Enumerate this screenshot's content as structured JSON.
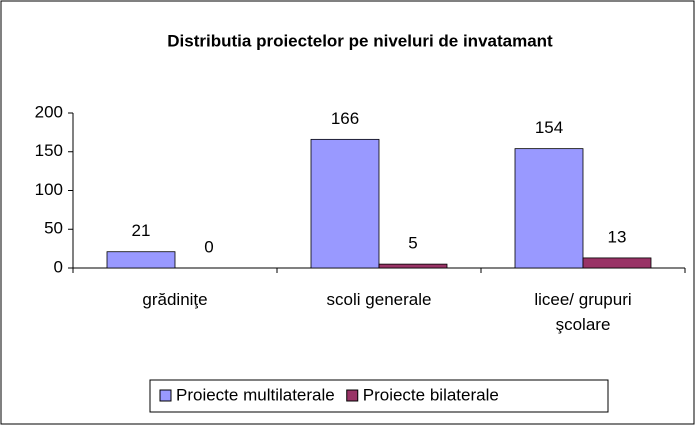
{
  "chart_data": {
    "type": "bar",
    "title": "Distributia proiectelor pe niveluri de invatamant",
    "categories": [
      "grădiniţe",
      "scoli generale",
      "licee/ grupuri şcolare"
    ],
    "series": [
      {
        "name": "Proiecte multilaterale",
        "color": "#9999ff",
        "values": [
          21,
          166,
          154
        ]
      },
      {
        "name": "Proiecte bilaterale",
        "color": "#993366",
        "values": [
          0,
          5,
          13
        ]
      }
    ],
    "ylim": [
      0,
      200
    ],
    "yticks": [
      0,
      50,
      100,
      150,
      200
    ],
    "grid": false,
    "legend": "bottom"
  }
}
